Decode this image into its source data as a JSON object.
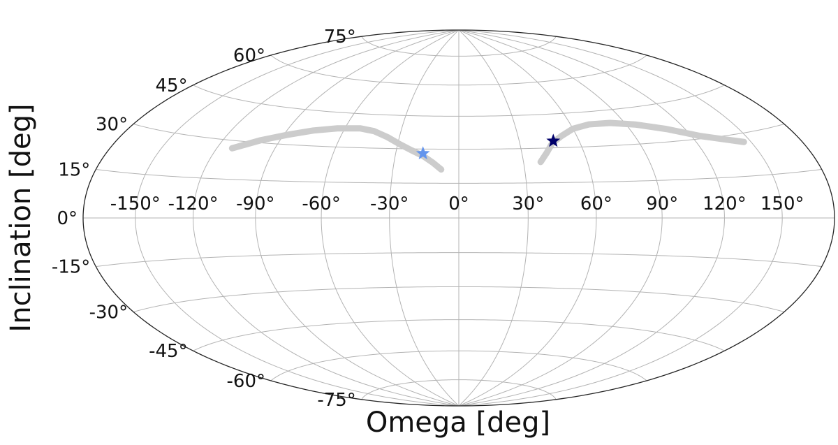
{
  "chart_data": {
    "type": "scatter",
    "projection": "aitoff/hammer all-sky",
    "xlabel": "Omega [deg]",
    "ylabel": "Inclination [deg]",
    "xlim": [
      -180,
      180
    ],
    "ylim": [
      -90,
      90
    ],
    "grid": true,
    "x_ticks": [
      "-150°",
      "-120°",
      "-90°",
      "-60°",
      "-30°",
      "0°",
      "30°",
      "60°",
      "90°",
      "120°",
      "150°"
    ],
    "x_tick_values": [
      -150,
      -120,
      -90,
      -60,
      -30,
      0,
      30,
      60,
      90,
      120,
      150
    ],
    "y_ticks": [
      "75°",
      "60°",
      "45°",
      "30°",
      "15°",
      "0°",
      "-15°",
      "-30°",
      "-45°",
      "-60°",
      "-75°"
    ],
    "y_tick_values": [
      75,
      60,
      45,
      30,
      15,
      0,
      -15,
      -30,
      -45,
      -60,
      -75
    ],
    "series": [
      {
        "kind": "track",
        "color": "#cccccc",
        "points": [
          [
            -112,
            27
          ],
          [
            -100,
            31
          ],
          [
            -88,
            34
          ],
          [
            -76,
            36.5
          ],
          [
            -64,
            38
          ],
          [
            -52,
            38.5
          ],
          [
            -44,
            37.5
          ],
          [
            -36,
            35
          ],
          [
            -29,
            32
          ],
          [
            -23,
            29.5
          ],
          [
            -17,
            27
          ],
          [
            -12,
            24
          ],
          [
            -8,
            21
          ]
        ]
      },
      {
        "kind": "track",
        "color": "#cccccc",
        "points": [
          [
            38,
            24
          ],
          [
            42,
            28
          ],
          [
            46,
            32
          ],
          [
            52,
            35
          ],
          [
            60,
            38
          ],
          [
            70,
            39.5
          ],
          [
            82,
            39.5
          ],
          [
            95,
            38
          ],
          [
            110,
            35
          ],
          [
            125,
            31
          ],
          [
            138,
            28.5
          ],
          [
            146,
            27
          ]
        ]
      },
      {
        "kind": "marker",
        "marker": "star",
        "color": "#6495ED",
        "points": [
          [
            -17,
            28
          ]
        ]
      },
      {
        "kind": "marker",
        "marker": "star",
        "color": "#00006b",
        "points": [
          [
            47,
            33
          ]
        ]
      }
    ]
  }
}
